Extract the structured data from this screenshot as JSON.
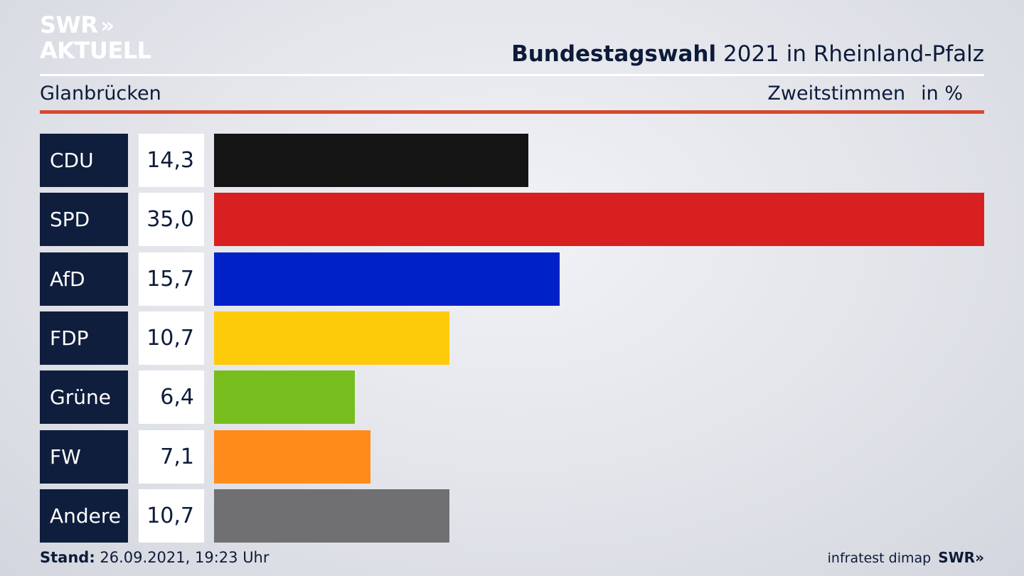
{
  "brand": {
    "line1": "SWR",
    "chevrons": "»",
    "line2": "AKTUELL"
  },
  "header": {
    "title_bold": "Bundestagswahl",
    "title_rest": "2021 in Rheinland-Pfalz",
    "region": "Glanbrücken",
    "metric": "Zweitstimmen",
    "unit": "in %"
  },
  "chart_data": {
    "type": "bar",
    "orientation": "horizontal",
    "title": "Bundestagswahl 2021 in Rheinland-Pfalz",
    "subtitle": "Glanbrücken",
    "ylabel": "Zweitstimmen in %",
    "categories": [
      "CDU",
      "SPD",
      "AfD",
      "FDP",
      "Grüne",
      "FW",
      "Andere"
    ],
    "values": [
      14.3,
      35.0,
      15.7,
      10.7,
      6.4,
      7.1,
      10.7
    ],
    "value_labels": [
      "14,3",
      "35,0",
      "15,7",
      "10,7",
      "6,4",
      "7,1",
      "10,7"
    ],
    "colors": [
      "#141414",
      "#d82020",
      "#0021c8",
      "#fecb0a",
      "#77bd1e",
      "#ff8c1a",
      "#707072"
    ],
    "xlim": [
      0,
      35.0
    ],
    "grid": false
  },
  "footer": {
    "stand_label": "Stand:",
    "stand_value": "26.09.2021, 19:23 Uhr",
    "source": "infratest dimap",
    "source_brand": "SWR»"
  }
}
